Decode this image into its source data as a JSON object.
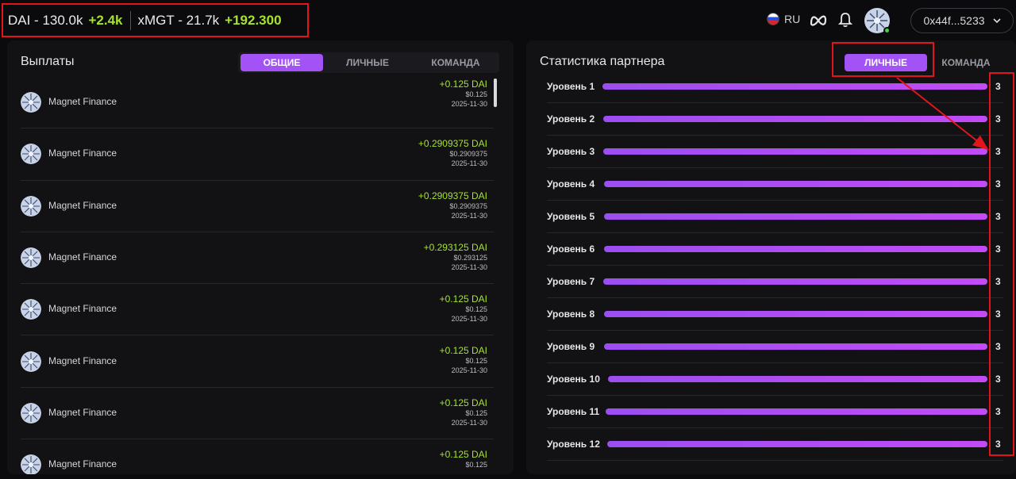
{
  "ticker": [
    {
      "name": "DAI - 130.0k",
      "change": "+2.4k"
    },
    {
      "name": "xMGT - 21.7k",
      "change": "+192.300"
    }
  ],
  "header": {
    "lang": "RU",
    "wallet": "0x44f...5233"
  },
  "payouts": {
    "title": "Выплаты",
    "tabs": [
      "ОБЩИЕ",
      "ЛИЧНЫЕ",
      "КОМАНДА"
    ],
    "active_tab": 0,
    "rows": [
      {
        "name": "Magnet Finance",
        "dai": "+0.125 DAI",
        "usd": "$0.125",
        "date": "2025-11-30"
      },
      {
        "name": "Magnet Finance",
        "dai": "+0.2909375 DAI",
        "usd": "$0.2909375",
        "date": "2025-11-30"
      },
      {
        "name": "Magnet Finance",
        "dai": "+0.2909375 DAI",
        "usd": "$0.2909375",
        "date": "2025-11-30"
      },
      {
        "name": "Magnet Finance",
        "dai": "+0.293125 DAI",
        "usd": "$0.293125",
        "date": "2025-11-30"
      },
      {
        "name": "Magnet Finance",
        "dai": "+0.125 DAI",
        "usd": "$0.125",
        "date": "2025-11-30"
      },
      {
        "name": "Magnet Finance",
        "dai": "+0.125 DAI",
        "usd": "$0.125",
        "date": "2025-11-30"
      },
      {
        "name": "Magnet Finance",
        "dai": "+0.125 DAI",
        "usd": "$0.125",
        "date": "2025-11-30"
      },
      {
        "name": "Magnet Finance",
        "dai": "+0.125 DAI",
        "usd": "$0.125",
        "date": ""
      }
    ]
  },
  "stats": {
    "title": "Статистика партнера",
    "tabs": [
      "ЛИЧНЫЕ",
      "КОМАНДА"
    ],
    "active_tab": 0,
    "levels": [
      {
        "label": "Уровень 1",
        "count": "3"
      },
      {
        "label": "Уровень 2",
        "count": "3"
      },
      {
        "label": "Уровень 3",
        "count": "3"
      },
      {
        "label": "Уровень 4",
        "count": "3"
      },
      {
        "label": "Уровень 5",
        "count": "3"
      },
      {
        "label": "Уровень 6",
        "count": "3"
      },
      {
        "label": "Уровень 7",
        "count": "3"
      },
      {
        "label": "Уровень 8",
        "count": "3"
      },
      {
        "label": "Уровень 9",
        "count": "3"
      },
      {
        "label": "Уровень 10",
        "count": "3"
      },
      {
        "label": "Уровень 11",
        "count": "3"
      },
      {
        "label": "Уровень 12",
        "count": "3"
      }
    ]
  },
  "colors": {
    "accent": "#a352f5",
    "positive": "#a6e22e",
    "annotation": "#e0161c"
  }
}
